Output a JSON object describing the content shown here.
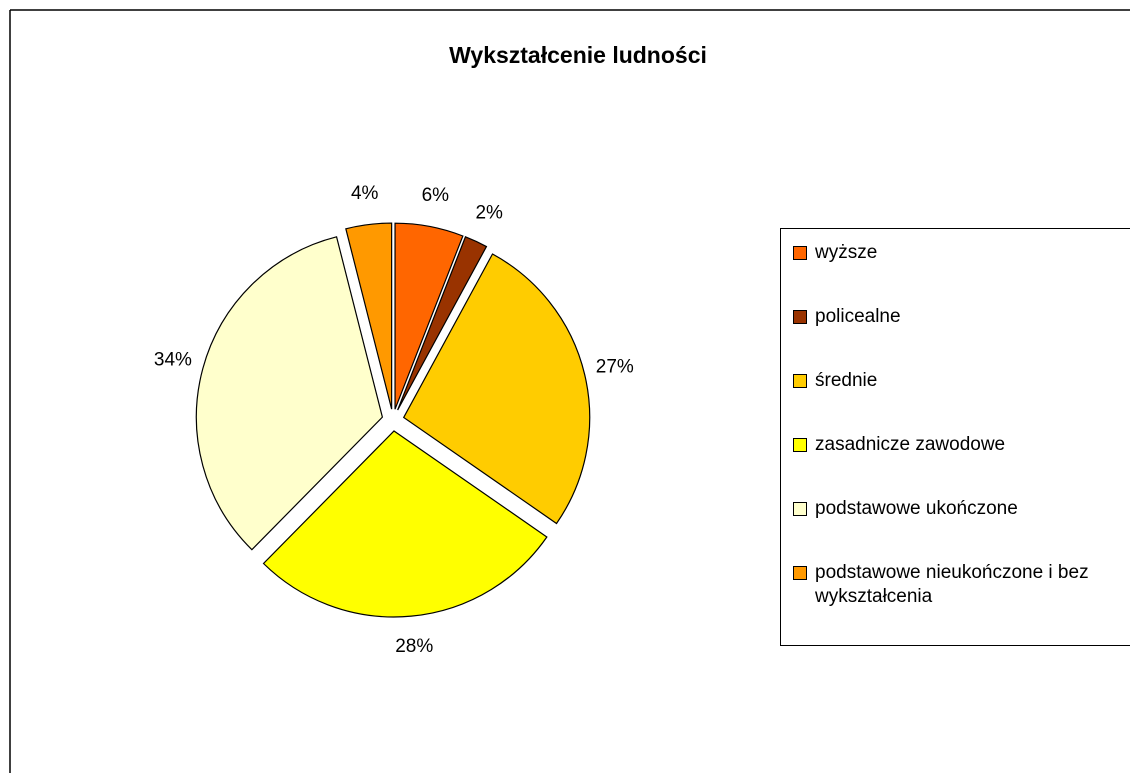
{
  "chart_data": {
    "type": "pie",
    "title": "Wykształcenie ludności",
    "categories": [
      "wyższe",
      "policealne",
      "średnie",
      "zasadnicze zawodowe",
      "podstawowe ukończone",
      "podstawowe nieukończone i bez wykształcenia"
    ],
    "values": [
      6,
      2,
      27,
      28,
      34,
      4
    ],
    "value_labels": [
      "6%",
      "2%",
      "27%",
      "28%",
      "34%",
      "4%"
    ],
    "colors": [
      "#ff6600",
      "#993300",
      "#ffcc00",
      "#ffff00",
      "#ffffcc",
      "#ff9900"
    ],
    "legend": "right"
  }
}
